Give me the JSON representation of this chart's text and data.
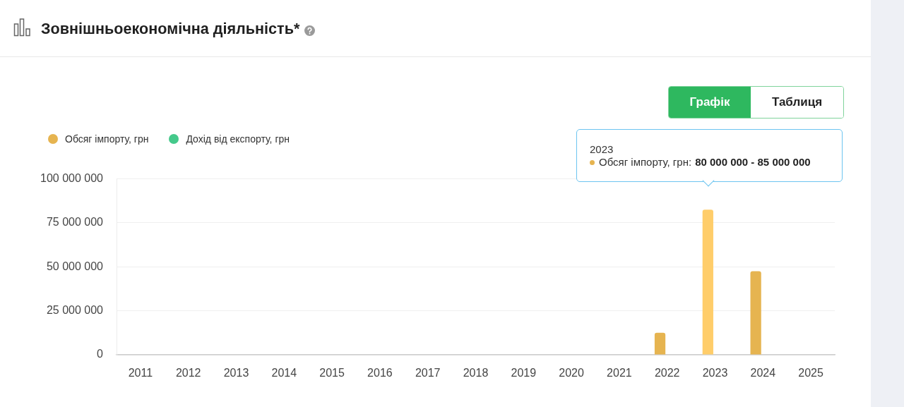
{
  "chart_data": {
    "type": "bar",
    "title": "Зовнішньоекономічна діяльність*",
    "categories": [
      "2011",
      "2012",
      "2013",
      "2014",
      "2015",
      "2016",
      "2017",
      "2018",
      "2019",
      "2020",
      "2021",
      "2022",
      "2023",
      "2024",
      "2025"
    ],
    "series": [
      {
        "name": "Обсяг імпорту, грн",
        "color": "#e6b450",
        "colors": [
          "#e6b450",
          "#e6b450",
          "#e6b450",
          "#e6b450",
          "#e6b450",
          "#e6b450",
          "#e6b450",
          "#e6b450",
          "#e6b450",
          "#e6b450",
          "#e6b450",
          "#e6b450",
          "#ffcd6a",
          "#e6b450",
          "#e6b450"
        ],
        "values": [
          null,
          null,
          null,
          null,
          null,
          null,
          null,
          null,
          null,
          null,
          null,
          12500000,
          82500000,
          47500000,
          null
        ]
      },
      {
        "name": "Дохід від експорту, грн",
        "color": "#45c98b",
        "values": [
          null,
          null,
          null,
          null,
          null,
          null,
          null,
          null,
          null,
          null,
          null,
          null,
          null,
          null,
          null
        ]
      }
    ],
    "ylim": [
      0,
      100000000
    ],
    "yticks": [
      0,
      {
        "value": 25000000,
        "label": "25 000 000"
      },
      {
        "value": 50000000,
        "label": "50 000 000"
      },
      {
        "value": 75000000,
        "label": "75 000 000"
      },
      {
        "value": 100000000,
        "label": "100 000 000"
      }
    ],
    "grid": "y",
    "legend": "top left",
    "annotations": [
      "Графік",
      "Таблиця",
      "2023",
      "Обсяг імпорту, грн:",
      "80 000 000 - 85 000 000"
    ]
  }
}
